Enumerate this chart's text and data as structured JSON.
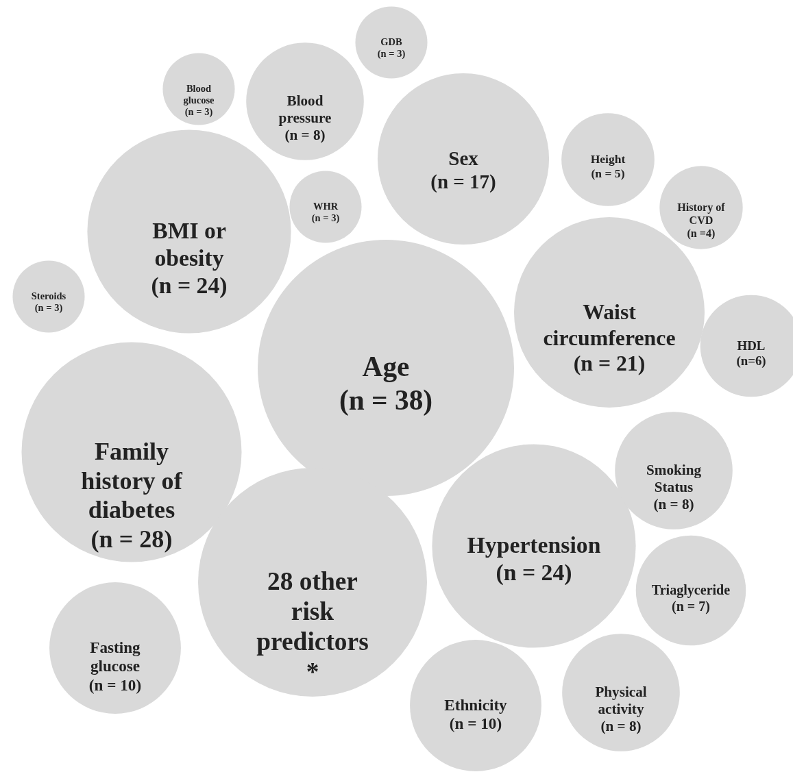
{
  "chart_data": {
    "type": "other",
    "color": "#d9d9d9",
    "categories": [
      "Age",
      "Family\nhistory of\ndiabetes",
      "28 other\nrisk\npredictors\n*",
      "BMI or\nobesity",
      "Hypertension",
      "Waist\ncircumference",
      "Sex",
      "Fasting\nglucose",
      "Ethnicity",
      "Blood\npressure",
      "Smoking\nStatus",
      "Physical\nactivity",
      "Triaglyceride",
      "HDL",
      "Height",
      "History of\nCVD",
      "Blood\nglucose",
      "GDB",
      "WHR",
      "Steroids"
    ],
    "values": [
      38,
      28,
      null,
      24,
      24,
      21,
      17,
      10,
      10,
      8,
      8,
      8,
      7,
      6,
      5,
      4,
      3,
      3,
      3,
      3
    ],
    "value_labels": [
      "(n = 38)",
      "(n = 28)",
      null,
      "(n = 24)",
      "(n = 24)",
      "(n = 21)",
      "(n = 17)",
      "(n = 10)",
      "(n = 10)",
      "(n = 8)",
      "(n = 8)",
      "(n = 8)",
      "(n = 7)",
      "(n=6)",
      "(n = 5)",
      "(n =4)",
      "(n = 3)",
      "(n = 3)",
      "(n = 3)",
      "(n = 3)"
    ]
  }
}
